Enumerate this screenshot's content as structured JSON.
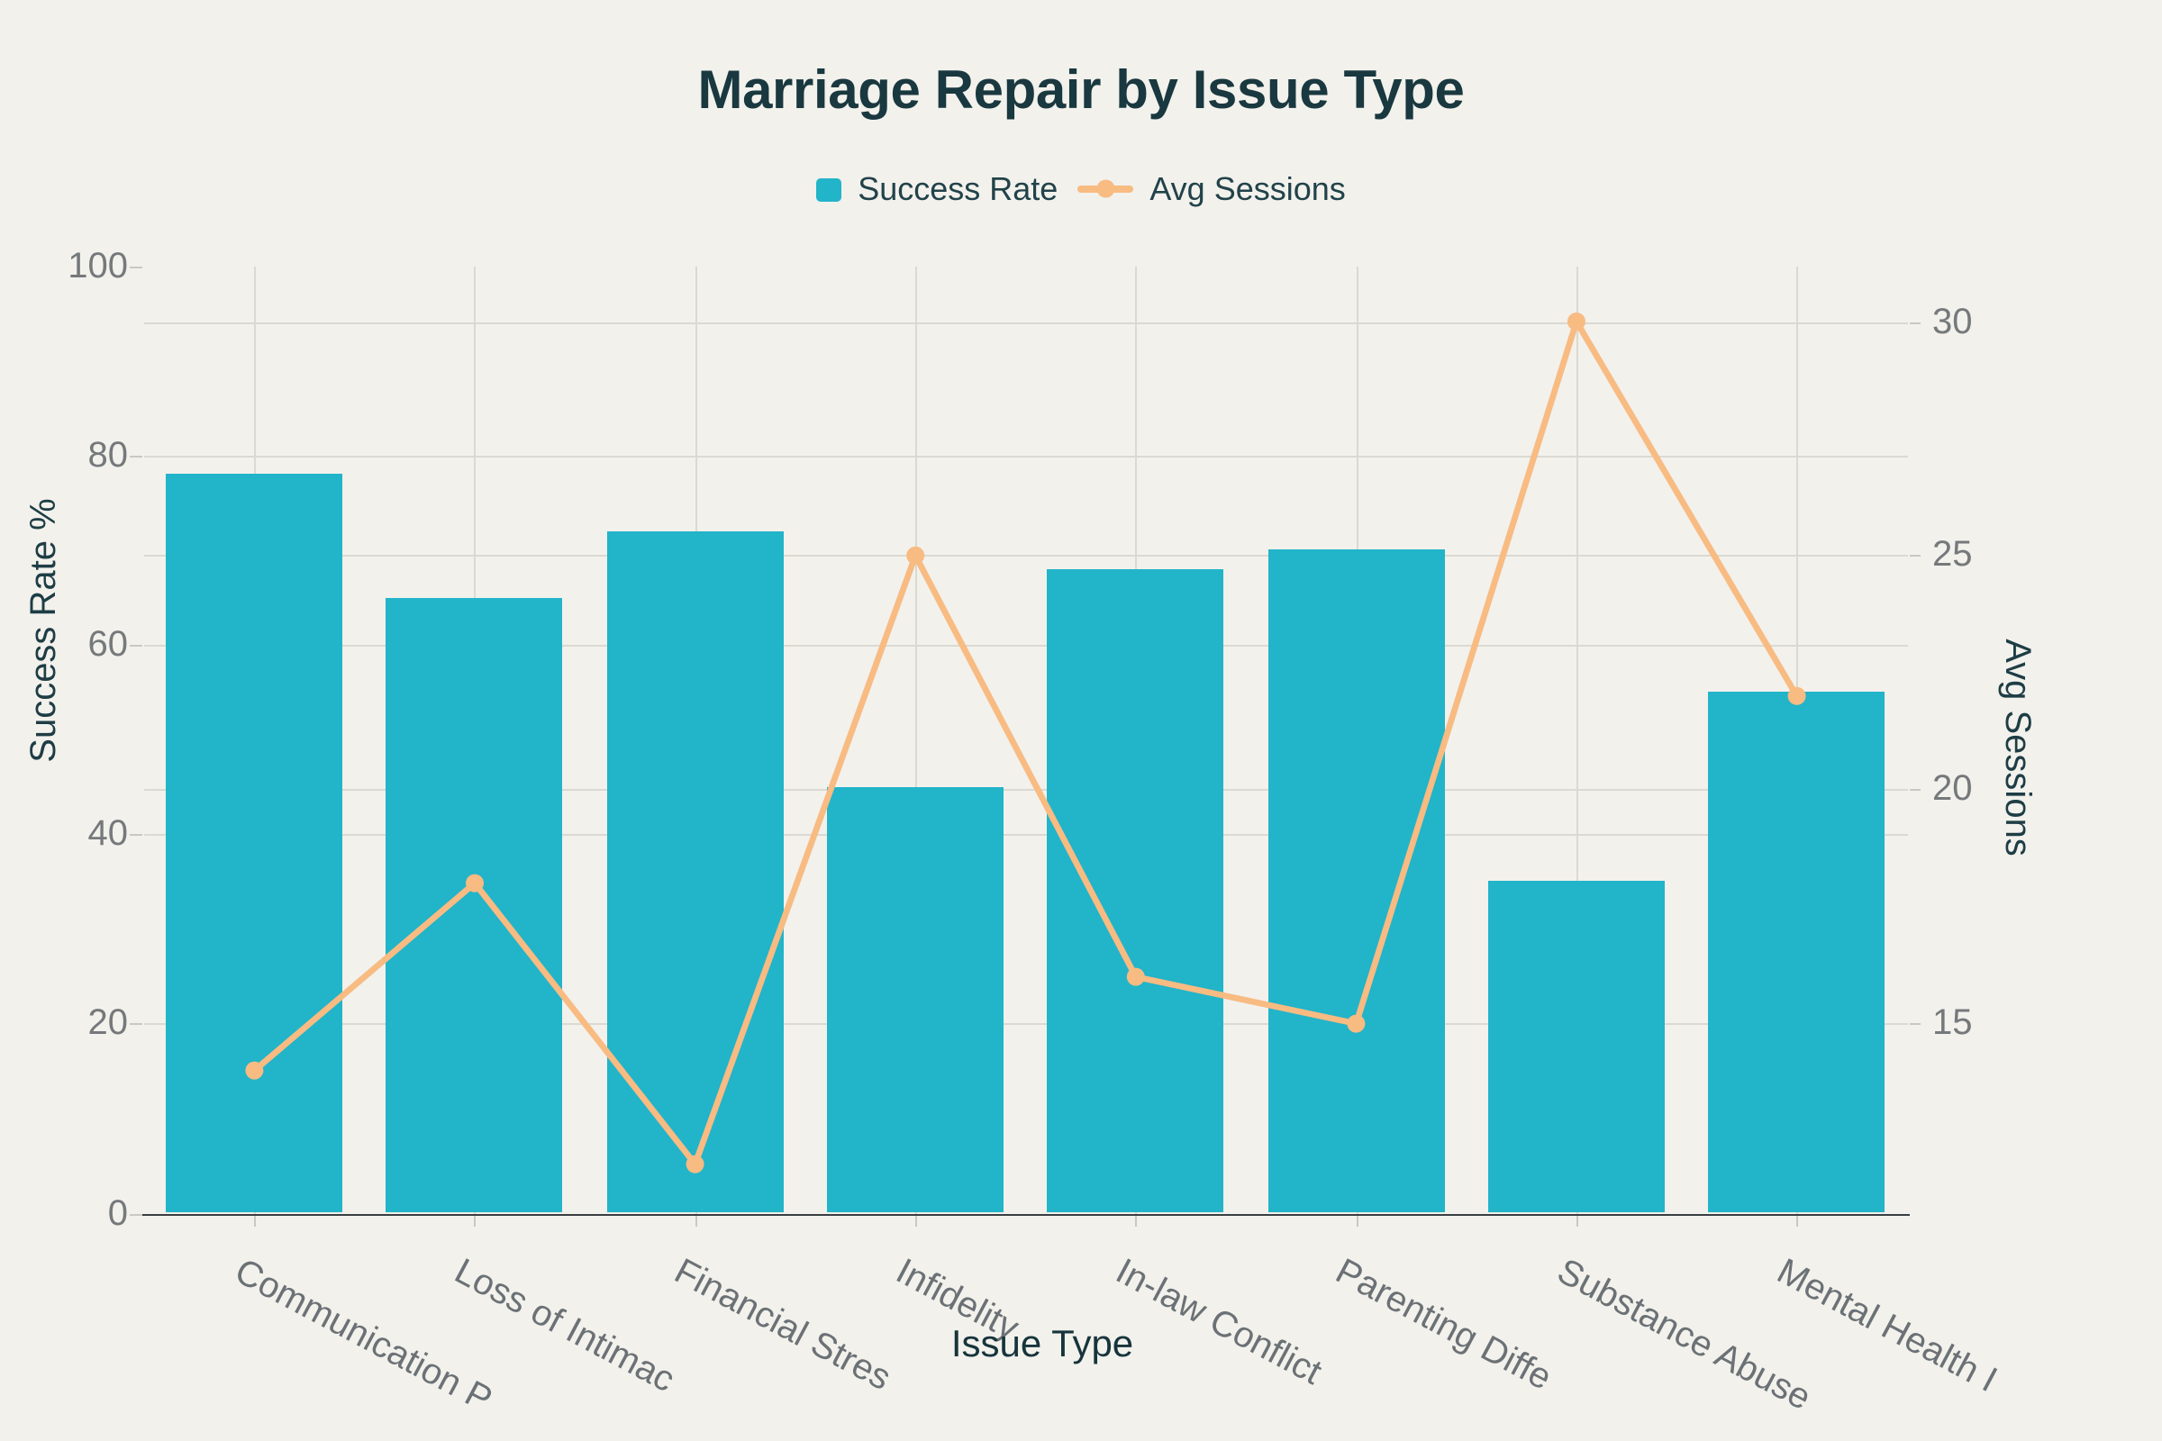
{
  "page": {
    "background": "#f2f1ec"
  },
  "title": {
    "text": "Marriage Repair by Issue Type",
    "color": "#19383f"
  },
  "legend": {
    "position": "top",
    "items": [
      {
        "label": "Success Rate",
        "icon": "bar-swatch",
        "color": "#22b4c9"
      },
      {
        "label": "Avg Sessions",
        "icon": "line-with-dot",
        "color": "#f8bb82"
      }
    ]
  },
  "axes": {
    "x": {
      "title": "Issue Type"
    },
    "y_left": {
      "title": "Success Rate %"
    },
    "y_right": {
      "title": "Avg Sessions"
    }
  },
  "chart_data": {
    "type": "combo-bar-line",
    "title": "Marriage Repair by Issue Type",
    "xlabel": "Issue Type",
    "ylabel_left": "Success Rate %",
    "ylabel_right": "Avg Sessions",
    "categories": [
      "Communication P",
      "Loss of Intimac",
      "Financial Stres",
      "Infidelity",
      "In-law Conflict",
      "Parenting Diffe",
      "Substance Abuse",
      "Mental Health I"
    ],
    "series": [
      {
        "name": "Success Rate",
        "type": "bar",
        "y_axis": "left",
        "color": "#22b4c9",
        "values": [
          78,
          65,
          72,
          45,
          68,
          70,
          35,
          55
        ]
      },
      {
        "name": "Avg Sessions",
        "type": "line",
        "y_axis": "right",
        "color": "#f8bb82",
        "values": [
          14,
          18,
          12,
          25,
          16,
          15,
          30,
          22
        ]
      }
    ],
    "y_left_ticks": [
      0,
      20,
      40,
      60,
      80,
      100
    ],
    "y_left_range": [
      0,
      100
    ],
    "y_right_ticks": [
      15,
      20,
      25,
      30
    ],
    "grid": true,
    "legend_position": "top",
    "styles": {
      "grid_color": "#dad9d2",
      "axis_line_color": "#383e41",
      "tick_label_color": "#75797b",
      "x_label_color": "#6b7175",
      "axis_title_color": "#1e3d45",
      "x_title_color": "#17343c"
    }
  }
}
